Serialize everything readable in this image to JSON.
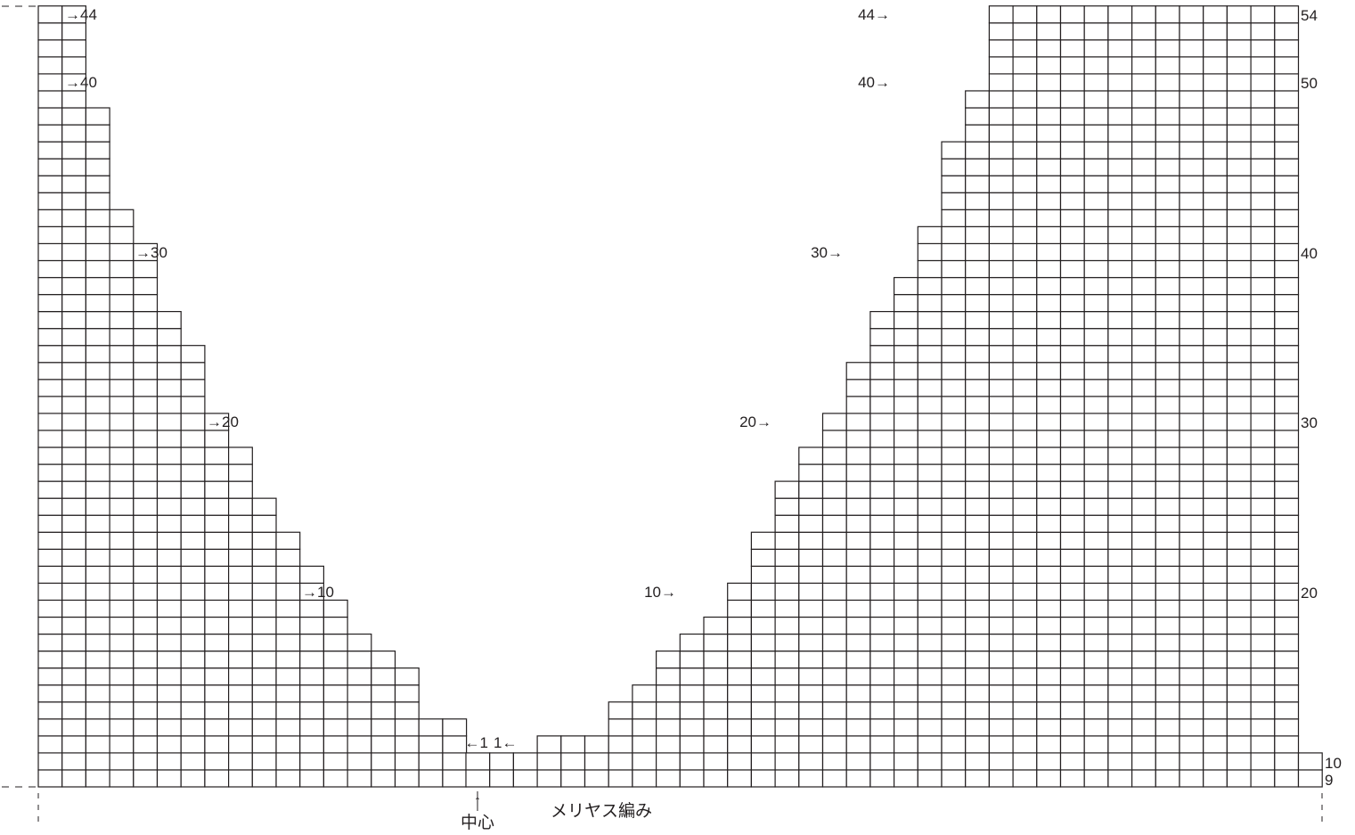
{
  "diagram": {
    "stitch_label": "メリヤス編み",
    "center_label": "中心",
    "center_arrow": "↑",
    "left_chart": {
      "row_markers": [
        "→44",
        "→40",
        "→30",
        "→20",
        "→10"
      ],
      "center_marker": "←1"
    },
    "right_chart": {
      "row_markers": [
        "44→",
        "40→",
        "30→",
        "20→",
        "10→"
      ],
      "center_marker": "1←",
      "side_row_numbers": [
        "54",
        "50",
        "40",
        "30",
        "20",
        "10",
        "9"
      ]
    },
    "colors": {
      "line": "#231f20",
      "cell": "#ffffff"
    }
  }
}
